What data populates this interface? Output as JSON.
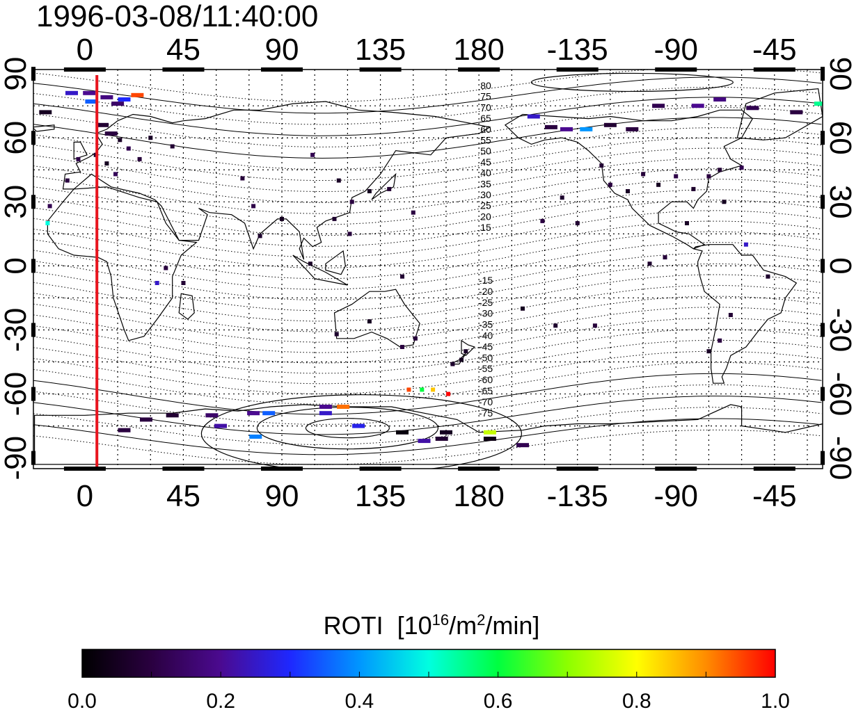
{
  "title": "1996-03-08/11:40:00",
  "map": {
    "lon_range": [
      -23.5,
      337
    ],
    "lat_range": [
      -95,
      92
    ],
    "top_ticks": [
      {
        "lon": 0,
        "label": "0"
      },
      {
        "lon": 45,
        "label": "45"
      },
      {
        "lon": 90,
        "label": "90"
      },
      {
        "lon": 135,
        "label": "135"
      },
      {
        "lon": 180,
        "label": "180"
      },
      {
        "lon": 225,
        "label": "-135"
      },
      {
        "lon": 270,
        "label": "-90"
      },
      {
        "lon": 315,
        "label": "-45"
      }
    ],
    "bottom_ticks": [
      {
        "lon": 0,
        "label": "0"
      },
      {
        "lon": 45,
        "label": "45"
      },
      {
        "lon": 90,
        "label": "90"
      },
      {
        "lon": 135,
        "label": "135"
      },
      {
        "lon": 180,
        "label": "180"
      },
      {
        "lon": 225,
        "label": "-135"
      },
      {
        "lon": 270,
        "label": "-90"
      },
      {
        "lon": 315,
        "label": "-45"
      }
    ],
    "left_ticks": [
      {
        "lat": 90,
        "label": "90"
      },
      {
        "lat": 60,
        "label": "60"
      },
      {
        "lat": 30,
        "label": "30"
      },
      {
        "lat": 0,
        "label": "0"
      },
      {
        "lat": -30,
        "label": "-30"
      },
      {
        "lat": -60,
        "label": "-60"
      },
      {
        "lat": -90,
        "label": "-90"
      }
    ],
    "right_ticks": [
      {
        "lat": 90,
        "label": "90"
      },
      {
        "lat": 60,
        "label": "60"
      },
      {
        "lat": 30,
        "label": "30"
      },
      {
        "lat": 0,
        "label": "0"
      },
      {
        "lat": -30,
        "label": "-30"
      },
      {
        "lat": -60,
        "label": "-60"
      },
      {
        "lat": -90,
        "label": "-90"
      }
    ],
    "grid_lons": [
      15,
      30,
      45,
      60,
      75,
      90,
      105,
      120,
      135,
      150,
      165,
      180,
      195,
      210,
      225,
      240,
      255,
      270,
      285,
      300,
      315,
      330
    ],
    "grid_lats": [
      -75,
      -60,
      -45,
      -30,
      -15,
      0,
      15,
      30,
      45,
      60,
      75
    ],
    "sun_meridian_lon": 5.5,
    "sun_meridian_color": "#e8141e",
    "magnetic_lat_labels": [
      "80",
      "75",
      "70",
      "65",
      "60",
      "55",
      "50",
      "45",
      "40",
      "35",
      "30",
      "25",
      "20",
      "15",
      "-15",
      "-20",
      "-25",
      "-30",
      "-35",
      "-40",
      "-45",
      "-50",
      "-55",
      "-60",
      "-65",
      "-70",
      "-75"
    ],
    "magnetic_pole_north": {
      "lon": 250,
      "lat": 86
    },
    "magnetic_pole_south": {
      "lon": 120,
      "lat": -76
    }
  },
  "chart_data": {
    "type": "scatter",
    "title": "1996-03-08/11:40:00",
    "variable": "ROTI",
    "xlabel": "",
    "ylabel": "",
    "xlim": [
      -23.5,
      337
    ],
    "ylim": [
      -95,
      92
    ],
    "points": [
      {
        "lon": -6,
        "lat": 81,
        "roti": 0.25
      },
      {
        "lon": 2,
        "lat": 81,
        "roti": 0.2
      },
      {
        "lon": 10,
        "lat": 79,
        "roti": 0.18
      },
      {
        "lon": 24,
        "lat": 80,
        "roti": 0.95
      },
      {
        "lon": 18,
        "lat": 78,
        "roti": 0.3
      },
      {
        "lon": 3,
        "lat": 77,
        "roti": 0.35
      },
      {
        "lon": 15,
        "lat": 76,
        "roti": 0.15
      },
      {
        "lon": -18,
        "lat": 72,
        "roti": 0.05
      },
      {
        "lon": 8,
        "lat": 66,
        "roti": 0.08
      },
      {
        "lon": 12,
        "lat": 62,
        "roti": 0.1
      },
      {
        "lon": 16,
        "lat": 59,
        "roti": 0.06
      },
      {
        "lon": 20,
        "lat": 55,
        "roti": 0.12
      },
      {
        "lon": 5,
        "lat": 52,
        "roti": 0.07
      },
      {
        "lon": -3,
        "lat": 50,
        "roti": 0.11
      },
      {
        "lon": 10,
        "lat": 48,
        "roti": 0.05
      },
      {
        "lon": 25,
        "lat": 50,
        "roti": 0.09
      },
      {
        "lon": -8,
        "lat": 40,
        "roti": 0.1
      },
      {
        "lon": 14,
        "lat": 43,
        "roti": 0.13
      },
      {
        "lon": 30,
        "lat": 60,
        "roti": 0.06
      },
      {
        "lon": 40,
        "lat": 56,
        "roti": 0.08
      },
      {
        "lon": -16,
        "lat": 28,
        "roti": 0.12
      },
      {
        "lon": -17,
        "lat": 20,
        "roti": 0.5
      },
      {
        "lon": 37,
        "lat": -1,
        "roti": 0.1
      },
      {
        "lon": 33,
        "lat": -8,
        "roti": 0.25
      },
      {
        "lon": 45,
        "lat": -8,
        "roti": 0.08
      },
      {
        "lon": 72,
        "lat": 41,
        "roti": 0.09
      },
      {
        "lon": 77,
        "lat": 28,
        "roti": 0.11
      },
      {
        "lon": 80,
        "lat": 14,
        "roti": 0.07
      },
      {
        "lon": 90,
        "lat": 22,
        "roti": 0.05
      },
      {
        "lon": 104,
        "lat": 52,
        "roti": 0.12
      },
      {
        "lon": 116,
        "lat": 40,
        "roti": 0.06
      },
      {
        "lon": 122,
        "lat": 30,
        "roti": 0.1
      },
      {
        "lon": 130,
        "lat": 35,
        "roti": 0.05
      },
      {
        "lon": 139,
        "lat": 36,
        "roti": 0.08
      },
      {
        "lon": 121,
        "lat": 15,
        "roti": 0.09
      },
      {
        "lon": 114,
        "lat": 22,
        "roti": 0.07
      },
      {
        "lon": 150,
        "lat": 25,
        "roti": 0.1
      },
      {
        "lon": 103,
        "lat": 1,
        "roti": 0.06
      },
      {
        "lon": 145,
        "lat": -5,
        "roti": 0.08
      },
      {
        "lon": 115,
        "lat": -32,
        "roti": 0.07
      },
      {
        "lon": 130,
        "lat": -26,
        "roti": 0.05
      },
      {
        "lon": 151,
        "lat": -34,
        "roti": 0.09
      },
      {
        "lon": 145,
        "lat": -38,
        "roti": 0.1
      },
      {
        "lon": 174,
        "lat": -40,
        "roti": 0.06
      },
      {
        "lon": 172,
        "lat": -44,
        "roti": 0.05
      },
      {
        "lon": 168,
        "lat": -46,
        "roti": 0.07
      },
      {
        "lon": 148,
        "lat": -58,
        "roti": 0.95
      },
      {
        "lon": 154,
        "lat": -58,
        "roti": 0.6
      },
      {
        "lon": 159,
        "lat": -58,
        "roti": 0.85
      },
      {
        "lon": 166,
        "lat": -60,
        "roti": 1.0
      },
      {
        "lon": 28,
        "lat": -72,
        "roti": 0.1
      },
      {
        "lon": 40,
        "lat": -70,
        "roti": 0.08
      },
      {
        "lon": 58,
        "lat": -70,
        "roti": 0.15
      },
      {
        "lon": 62,
        "lat": -75,
        "roti": 0.22
      },
      {
        "lon": 77,
        "lat": -69,
        "roti": 0.2
      },
      {
        "lon": 78,
        "lat": -80,
        "roti": 0.38
      },
      {
        "lon": 84,
        "lat": -69,
        "roti": 0.35
      },
      {
        "lon": 110,
        "lat": -66,
        "roti": 0.2
      },
      {
        "lon": 118,
        "lat": -66,
        "roti": 0.92
      },
      {
        "lon": 110,
        "lat": -69,
        "roti": 0.25
      },
      {
        "lon": 125,
        "lat": -75,
        "roti": 0.28
      },
      {
        "lon": 145,
        "lat": -78,
        "roti": 0.02
      },
      {
        "lon": 165,
        "lat": -78,
        "roti": 0.05
      },
      {
        "lon": 163,
        "lat": -81,
        "roti": 0.08
      },
      {
        "lon": 155,
        "lat": -82,
        "roti": 0.22
      },
      {
        "lon": 185,
        "lat": -78,
        "roti": 0.75
      },
      {
        "lon": 185,
        "lat": -81,
        "roti": 0.03
      },
      {
        "lon": 200,
        "lat": -84,
        "roti": 0.12
      },
      {
        "lon": 18,
        "lat": -77,
        "roti": 0.1
      },
      {
        "lon": 205,
        "lat": 70,
        "roti": 0.25
      },
      {
        "lon": 213,
        "lat": 65,
        "roti": 0.1
      },
      {
        "lon": 220,
        "lat": 64,
        "roti": 0.2
      },
      {
        "lon": 229,
        "lat": 64,
        "roti": 0.4
      },
      {
        "lon": 240,
        "lat": 66,
        "roti": 0.08
      },
      {
        "lon": 250,
        "lat": 64,
        "roti": 0.1
      },
      {
        "lon": 262,
        "lat": 75,
        "roti": 0.12
      },
      {
        "lon": 280,
        "lat": 75,
        "roti": 0.2
      },
      {
        "lon": 290,
        "lat": 78,
        "roti": 0.18
      },
      {
        "lon": 305,
        "lat": 74,
        "roti": 0.12
      },
      {
        "lon": 325,
        "lat": 72,
        "roti": 0.1
      },
      {
        "lon": 336,
        "lat": 76,
        "roti": 0.55
      },
      {
        "lon": 218,
        "lat": 32,
        "roti": 0.07
      },
      {
        "lon": 236,
        "lat": 47,
        "roti": 0.08
      },
      {
        "lon": 240,
        "lat": 38,
        "roti": 0.1
      },
      {
        "lon": 248,
        "lat": 35,
        "roti": 0.06
      },
      {
        "lon": 255,
        "lat": 43,
        "roti": 0.09
      },
      {
        "lon": 262,
        "lat": 38,
        "roti": 0.05
      },
      {
        "lon": 270,
        "lat": 42,
        "roti": 0.11
      },
      {
        "lon": 278,
        "lat": 36,
        "roti": 0.07
      },
      {
        "lon": 285,
        "lat": 42,
        "roti": 0.1
      },
      {
        "lon": 290,
        "lat": 45,
        "roti": 0.08
      },
      {
        "lon": 292,
        "lat": 30,
        "roti": 0.05
      },
      {
        "lon": 300,
        "lat": 46,
        "roti": 0.12
      },
      {
        "lon": 275,
        "lat": 20,
        "roti": 0.06
      },
      {
        "lon": 265,
        "lat": 4,
        "roti": 0.09
      },
      {
        "lon": 258,
        "lat": 1,
        "roti": 0.07
      },
      {
        "lon": 302,
        "lat": 10,
        "roti": 0.25
      },
      {
        "lon": 312,
        "lat": -5,
        "roti": 0.07
      },
      {
        "lon": 295,
        "lat": -23,
        "roti": 0.08
      },
      {
        "lon": 290,
        "lat": -35,
        "roti": 0.1
      },
      {
        "lon": 285,
        "lat": -40,
        "roti": 0.06
      },
      {
        "lon": 200,
        "lat": -20,
        "roti": 0.05
      },
      {
        "lon": 215,
        "lat": -28,
        "roti": 0.07
      },
      {
        "lon": 233,
        "lat": -28,
        "roti": 0.09
      },
      {
        "lon": 225,
        "lat": 20,
        "roti": 0.08
      },
      {
        "lon": 209,
        "lat": 21,
        "roti": 0.1
      }
    ],
    "colorbar": {
      "label": "ROTI",
      "unit": "[10",
      "unit_exp": "16",
      "unit_mid": "/m",
      "unit_exp2": "2",
      "unit_tail": "/min]",
      "min": 0.0,
      "max": 1.0,
      "tick_labels": [
        "0.0",
        "0.2",
        "0.4",
        "0.6",
        "0.8",
        "1.0"
      ]
    }
  }
}
